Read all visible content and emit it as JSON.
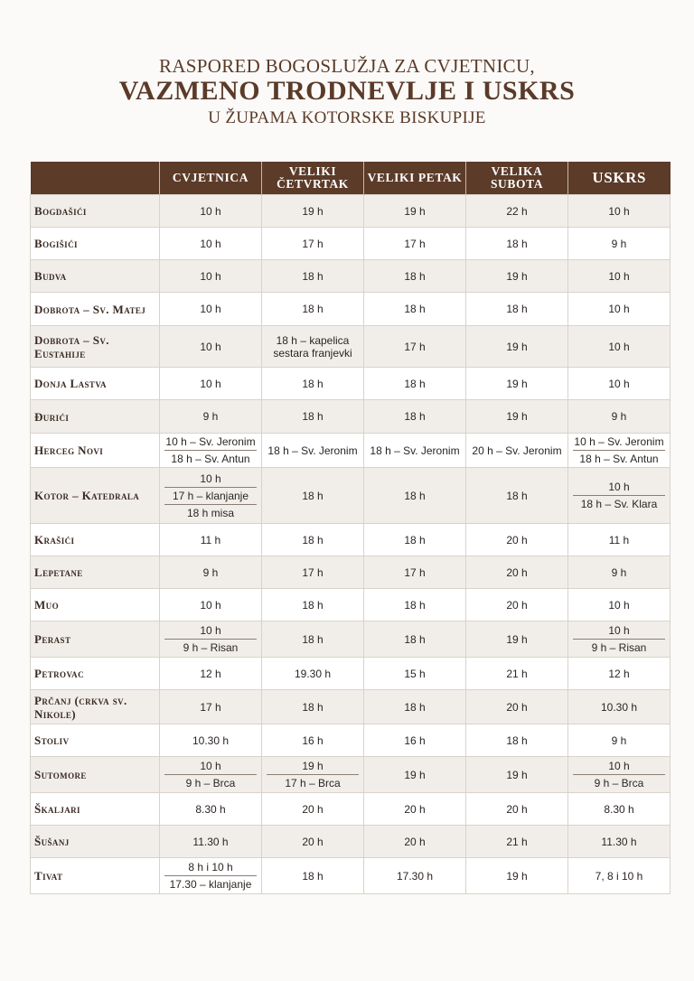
{
  "title": {
    "line1": "RASPORED BOGOSLUŽJA ZA CVJETNICU,",
    "line2": "VAZMENO TRODNEVLJE I USKRS",
    "line3": "U ŽUPAMA KOTORSKE BISKUPIJE"
  },
  "headers": [
    "",
    "CVJETNICA",
    "VELIKI ČETVRTAK",
    "VELIKI PETAK",
    "VELIKA SUBOTA",
    "USKRS"
  ],
  "rows": [
    {
      "name": "Bogdašići",
      "cells": [
        [
          "10 h"
        ],
        [
          "19 h"
        ],
        [
          "19 h"
        ],
        [
          "22 h"
        ],
        [
          "10 h"
        ]
      ]
    },
    {
      "name": "Bogišići",
      "cells": [
        [
          "10 h"
        ],
        [
          "17 h"
        ],
        [
          "17 h"
        ],
        [
          "18 h"
        ],
        [
          "9 h"
        ]
      ]
    },
    {
      "name": "Budva",
      "cells": [
        [
          "10 h"
        ],
        [
          "18 h"
        ],
        [
          "18 h"
        ],
        [
          "19 h"
        ],
        [
          "10 h"
        ]
      ]
    },
    {
      "name": "Dobrota – Sv. Matej",
      "cells": [
        [
          "10 h"
        ],
        [
          "18 h"
        ],
        [
          "18 h"
        ],
        [
          "18 h"
        ],
        [
          "10 h"
        ]
      ]
    },
    {
      "name": "Dobrota – Sv. Eustahije",
      "cells": [
        [
          "10 h"
        ],
        [
          "18 h – kapelica sestara franjevki"
        ],
        [
          "17 h"
        ],
        [
          "19 h"
        ],
        [
          "10 h"
        ]
      ]
    },
    {
      "name": "Donja Lastva",
      "cells": [
        [
          "10 h"
        ],
        [
          "18 h"
        ],
        [
          "18 h"
        ],
        [
          "19 h"
        ],
        [
          "10 h"
        ]
      ]
    },
    {
      "name": "Đurići",
      "cells": [
        [
          "9 h"
        ],
        [
          "18 h"
        ],
        [
          "18 h"
        ],
        [
          "19 h"
        ],
        [
          "9 h"
        ]
      ]
    },
    {
      "name": "Herceg Novi",
      "cells": [
        [
          "10 h – Sv. Jeronim",
          "18 h – Sv. Antun"
        ],
        [
          "18 h – Sv. Jeronim"
        ],
        [
          "18 h – Sv. Jeronim"
        ],
        [
          "20 h – Sv. Jeronim"
        ],
        [
          "10 h – Sv. Jeronim",
          "18 h – Sv. Antun"
        ]
      ]
    },
    {
      "name": "Kotor – Katedrala",
      "cells": [
        [
          "10 h",
          "17 h – klanjanje",
          "18 h misa"
        ],
        [
          "18 h"
        ],
        [
          "18 h"
        ],
        [
          "18 h"
        ],
        [
          "10 h",
          "18 h – Sv. Klara"
        ]
      ]
    },
    {
      "name": "Krašići",
      "cells": [
        [
          "11 h"
        ],
        [
          "18 h"
        ],
        [
          "18 h"
        ],
        [
          "20 h"
        ],
        [
          "11 h"
        ]
      ]
    },
    {
      "name": "Lepetane",
      "cells": [
        [
          "9 h"
        ],
        [
          "17 h"
        ],
        [
          "17 h"
        ],
        [
          "20 h"
        ],
        [
          "9 h"
        ]
      ]
    },
    {
      "name": "Muo",
      "cells": [
        [
          "10 h"
        ],
        [
          "18 h"
        ],
        [
          "18 h"
        ],
        [
          "20 h"
        ],
        [
          "10 h"
        ]
      ]
    },
    {
      "name": "Perast",
      "cells": [
        [
          "10 h",
          "9 h – Risan"
        ],
        [
          "18 h"
        ],
        [
          "18 h"
        ],
        [
          "19 h"
        ],
        [
          "10 h",
          "9 h – Risan"
        ]
      ]
    },
    {
      "name": "Petrovac",
      "cells": [
        [
          "12 h"
        ],
        [
          "19.30 h"
        ],
        [
          "15 h"
        ],
        [
          "21 h"
        ],
        [
          "12 h"
        ]
      ]
    },
    {
      "name": "Prčanj (crkva sv. Nikole)",
      "cells": [
        [
          "17 h"
        ],
        [
          "18 h"
        ],
        [
          "18 h"
        ],
        [
          "20 h"
        ],
        [
          "10.30 h"
        ]
      ]
    },
    {
      "name": "Stoliv",
      "cells": [
        [
          "10.30 h"
        ],
        [
          "16 h"
        ],
        [
          "16 h"
        ],
        [
          "18 h"
        ],
        [
          "9 h"
        ]
      ]
    },
    {
      "name": "Sutomore",
      "cells": [
        [
          "10 h",
          "9 h – Brca"
        ],
        [
          "19 h",
          "17 h – Brca"
        ],
        [
          "19 h"
        ],
        [
          "19 h"
        ],
        [
          "10 h",
          "9 h – Brca"
        ]
      ]
    },
    {
      "name": "Škaljari",
      "cells": [
        [
          "8.30 h"
        ],
        [
          "20 h"
        ],
        [
          "20 h"
        ],
        [
          "20 h"
        ],
        [
          "8.30 h"
        ]
      ]
    },
    {
      "name": "Šušanj",
      "cells": [
        [
          "11.30 h"
        ],
        [
          "20 h"
        ],
        [
          "20 h"
        ],
        [
          "21 h"
        ],
        [
          "11.30 h"
        ]
      ]
    },
    {
      "name": "Tivat",
      "cells": [
        [
          "8 h i 10 h",
          "17.30 – klanjanje"
        ],
        [
          "18 h"
        ],
        [
          "17.30 h"
        ],
        [
          "19 h"
        ],
        [
          "7, 8 i 10 h"
        ]
      ]
    }
  ]
}
